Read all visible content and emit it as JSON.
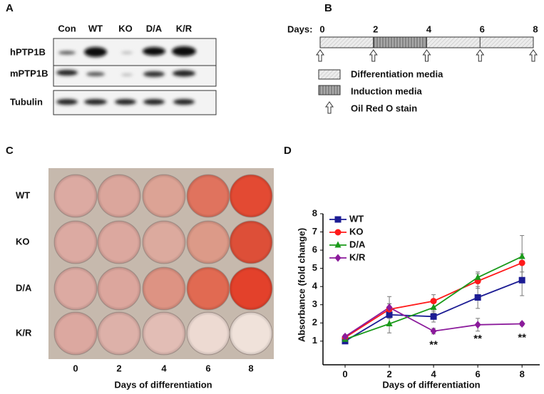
{
  "panel_a": {
    "label": "A",
    "columns": [
      "Con",
      "WT",
      "KO",
      "D/A",
      "K/R"
    ],
    "rows": [
      "hPTP1B",
      "mPTP1B",
      "Tubulin"
    ]
  },
  "panel_b": {
    "label": "B",
    "days_label": "Days:",
    "days": [
      0,
      2,
      4,
      6,
      8
    ],
    "induction": [
      2,
      4
    ],
    "legend": [
      "Differentiation media",
      "Induction media",
      "Oil Red O stain"
    ]
  },
  "panel_c": {
    "label": "C",
    "rows": [
      "WT",
      "KO",
      "D/A",
      "K/R"
    ],
    "columns": [
      0,
      2,
      4,
      6,
      8
    ],
    "xlabel": "Days of differentiation"
  },
  "chart_data": {
    "type": "line",
    "panel_label": "D",
    "x": [
      0,
      2,
      4,
      6,
      8
    ],
    "series": [
      {
        "name": "WT",
        "color": "#1c1c94",
        "marker": "square",
        "values": [
          1.0,
          2.45,
          2.35,
          3.4,
          4.35
        ],
        "errors": [
          0.1,
          0.6,
          0.3,
          0.6,
          0.85
        ]
      },
      {
        "name": "KO",
        "color": "#ff1a1a",
        "marker": "circle",
        "values": [
          1.2,
          2.75,
          3.2,
          4.3,
          5.3
        ],
        "errors": [
          0.1,
          0.3,
          0.35,
          0.4,
          0.5
        ]
      },
      {
        "name": "D/A",
        "color": "#1a9a1a",
        "marker": "triangle",
        "values": [
          1.1,
          1.95,
          2.85,
          4.5,
          5.65
        ],
        "errors": [
          0.1,
          0.5,
          0.3,
          0.3,
          1.15
        ]
      },
      {
        "name": "K/R",
        "color": "#8b1a9b",
        "marker": "diamond",
        "values": [
          1.25,
          2.85,
          1.55,
          1.9,
          1.95
        ],
        "errors": [
          0.1,
          0.6,
          0.15,
          0.35,
          0.1
        ]
      }
    ],
    "annotations": [
      {
        "x": 4,
        "text": "**"
      },
      {
        "x": 6,
        "text": "**"
      },
      {
        "x": 8,
        "text": "**"
      }
    ],
    "xlabel": "Days of differentiation",
    "ylabel": "Absorbance (fold change)",
    "xlim": [
      -1,
      8.8
    ],
    "ylim": [
      -0.3,
      8
    ],
    "xticks": [
      0,
      2,
      4,
      6,
      8
    ],
    "yticks": [
      1,
      2,
      3,
      4,
      5,
      6,
      7,
      8
    ],
    "legend": "upper left"
  }
}
